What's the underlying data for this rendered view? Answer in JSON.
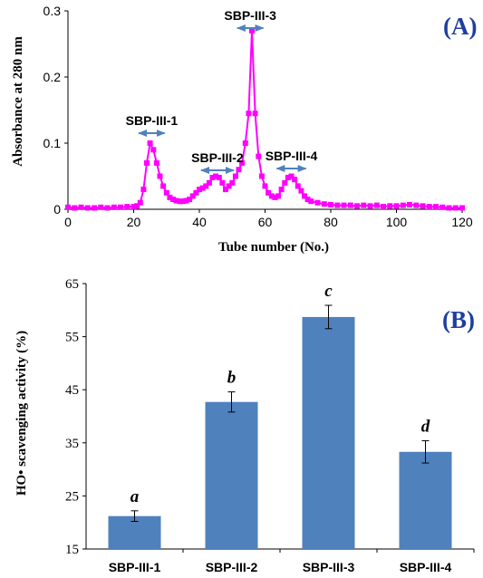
{
  "colors": {
    "line": "#ff00ff",
    "bar": "#4f81bd",
    "arrow": "#4f81bd",
    "panel_label": "#1f3f9f"
  },
  "chart_data": [
    {
      "type": "line",
      "panel_label": "(A)",
      "xlabel": "Tube number (No.)",
      "ylabel": "Absorbance at 280 nm",
      "xlim": [
        0,
        120
      ],
      "ylim": [
        0,
        0.3
      ],
      "x_ticks": [
        "0",
        "20",
        "40",
        "60",
        "80",
        "100",
        "120"
      ],
      "y_ticks": [
        "0",
        "0.1",
        "0.2",
        "0.3"
      ],
      "series": [
        {
          "x": [
            0,
            2,
            4,
            6,
            8,
            10,
            12,
            14,
            16,
            18,
            20,
            21,
            22,
            23,
            24,
            25,
            26,
            27,
            28,
            29,
            30,
            31,
            32,
            33,
            34,
            35,
            36,
            37,
            38,
            39,
            40,
            41,
            42,
            43,
            44,
            45,
            46,
            47,
            48,
            49,
            50,
            51,
            52,
            53,
            54,
            55,
            56,
            57,
            58,
            59,
            60,
            61,
            62,
            63,
            64,
            65,
            66,
            67,
            68,
            69,
            70,
            71,
            72,
            73,
            74,
            76,
            78,
            80,
            82,
            84,
            86,
            88,
            90,
            92,
            94,
            96,
            98,
            100,
            102,
            104,
            106,
            108,
            110,
            112,
            114,
            116,
            118,
            120
          ],
          "y": [
            0.003,
            0.002,
            0.003,
            0.002,
            0.002,
            0.003,
            0.002,
            0.003,
            0.003,
            0.004,
            0.004,
            0.005,
            0.01,
            0.03,
            0.07,
            0.1,
            0.09,
            0.07,
            0.05,
            0.035,
            0.025,
            0.018,
            0.015,
            0.013,
            0.012,
            0.012,
            0.013,
            0.015,
            0.02,
            0.025,
            0.03,
            0.032,
            0.035,
            0.04,
            0.048,
            0.05,
            0.048,
            0.04,
            0.03,
            0.035,
            0.04,
            0.05,
            0.06,
            0.07,
            0.1,
            0.145,
            0.27,
            0.145,
            0.08,
            0.05,
            0.035,
            0.025,
            0.02,
            0.018,
            0.02,
            0.03,
            0.04,
            0.048,
            0.05,
            0.045,
            0.035,
            0.028,
            0.02,
            0.015,
            0.012,
            0.01,
            0.008,
            0.007,
            0.006,
            0.006,
            0.006,
            0.005,
            0.006,
            0.005,
            0.006,
            0.004,
            0.005,
            0.005,
            0.006,
            0.007,
            0.006,
            0.005,
            0.004,
            0.004,
            0.003,
            0.002,
            0.002,
            0.002
          ]
        }
      ],
      "annotations": [
        {
          "text": "SBP-III-1",
          "x_range": [
            21,
            30
          ]
        },
        {
          "text": "SBP-III-2",
          "x_range": [
            40,
            51
          ]
        },
        {
          "text": "SBP-III-3",
          "x_range": [
            51,
            60
          ]
        },
        {
          "text": "SBP-III-4",
          "x_range": [
            63,
            73
          ]
        }
      ]
    },
    {
      "type": "bar",
      "panel_label": "(B)",
      "xlabel": "",
      "ylabel": "HO• scavenging activity (%)",
      "ylim": [
        15,
        65
      ],
      "y_ticks": [
        "15",
        "25",
        "35",
        "45",
        "55",
        "65"
      ],
      "categories": [
        "SBP-III-1",
        "SBP-III-2",
        "SBP-III-3",
        "SBP-III-4"
      ],
      "values": [
        21.2,
        42.7,
        58.7,
        33.3
      ],
      "errors": [
        1.0,
        1.9,
        2.2,
        2.1
      ],
      "significance": [
        "a",
        "b",
        "c",
        "d"
      ]
    }
  ]
}
